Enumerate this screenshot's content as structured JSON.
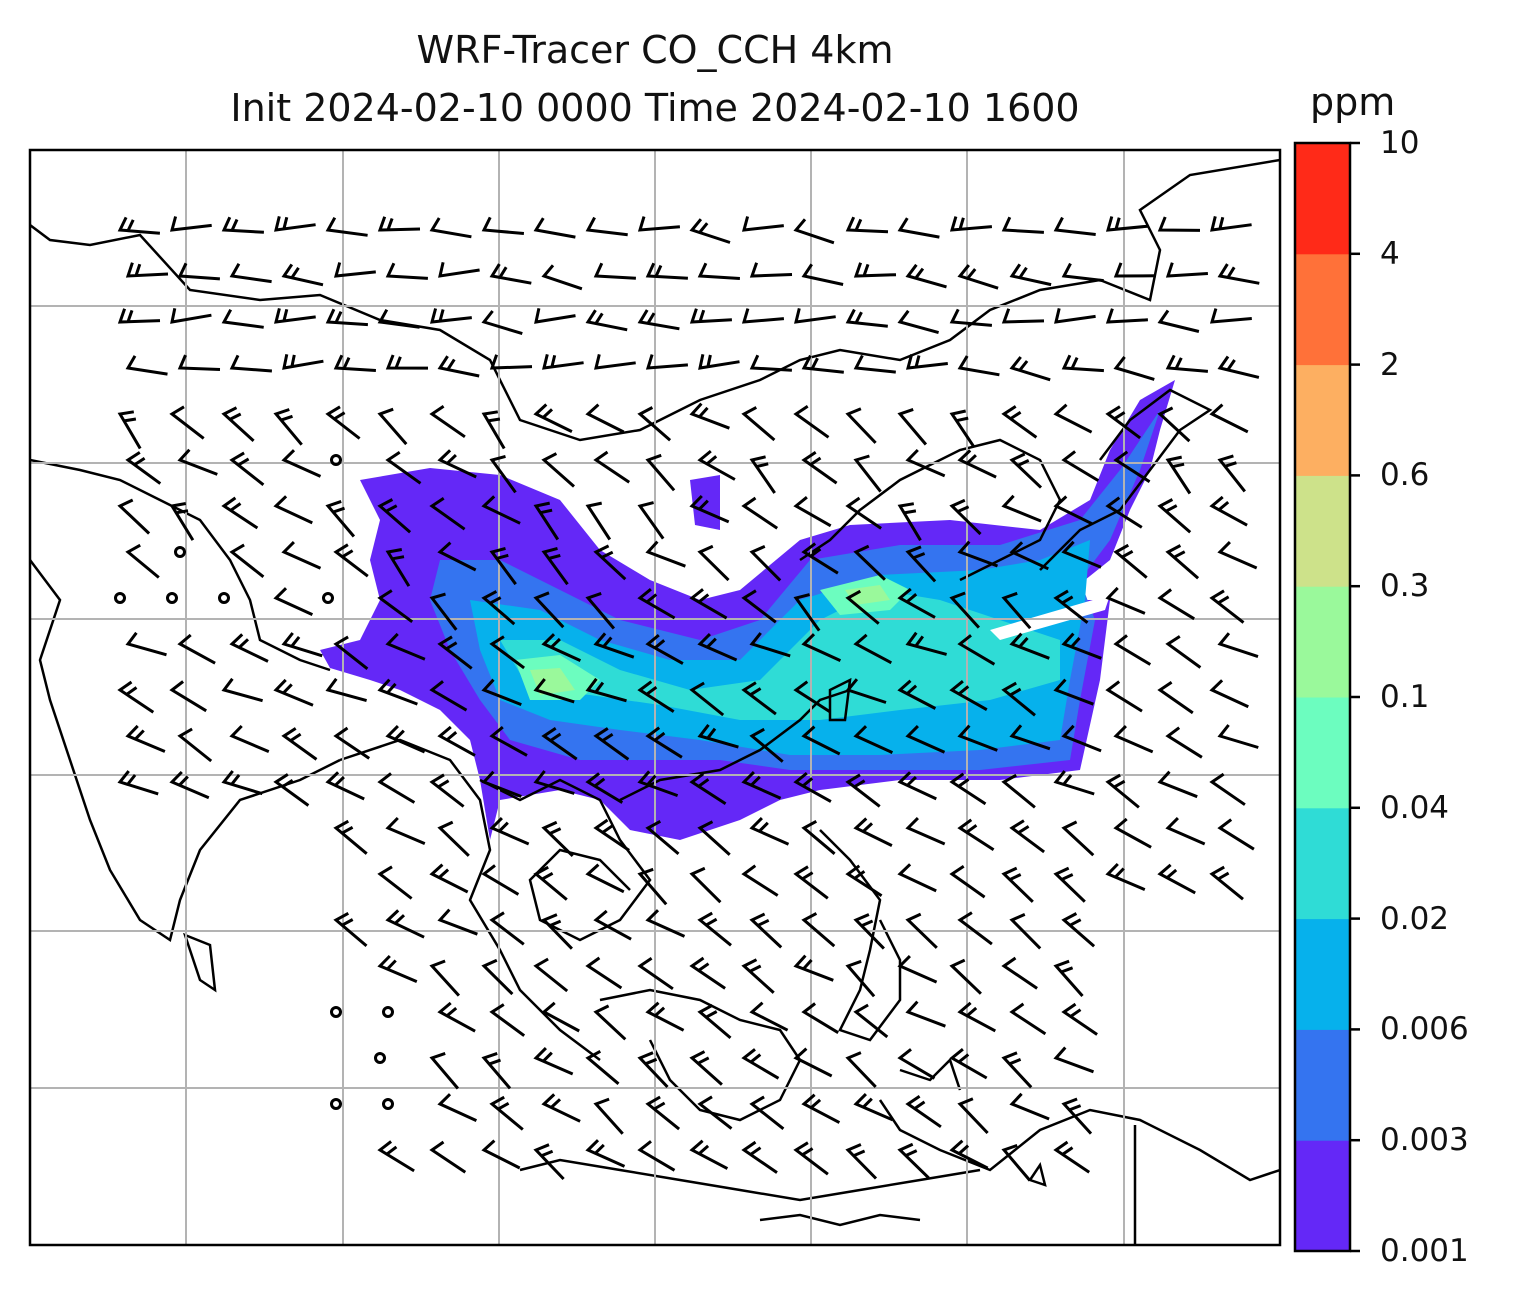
{
  "title": {
    "line1": "WRF-Tracer CO_CCH 4km",
    "line2": "Init 2024-02-10 0000 Time 2024-02-10 1600"
  },
  "colorbar": {
    "unit": "ppm",
    "levels": [
      "0.001",
      "0.003",
      "0.006",
      "0.02",
      "0.04",
      "0.1",
      "0.3",
      "0.6",
      "2",
      "4",
      "10"
    ],
    "colors": [
      "#6428f7",
      "#3474f0",
      "#06b1ec",
      "#2fdcd6",
      "#6cfdbf",
      "#9af99b",
      "#cde28a",
      "#fdaf61",
      "#ff7139",
      "#ff2a18"
    ]
  },
  "map": {
    "grid": "on",
    "wind_barbs": "black",
    "coastline_color": "#000000",
    "plume_peak_color": "#9af99b"
  }
}
